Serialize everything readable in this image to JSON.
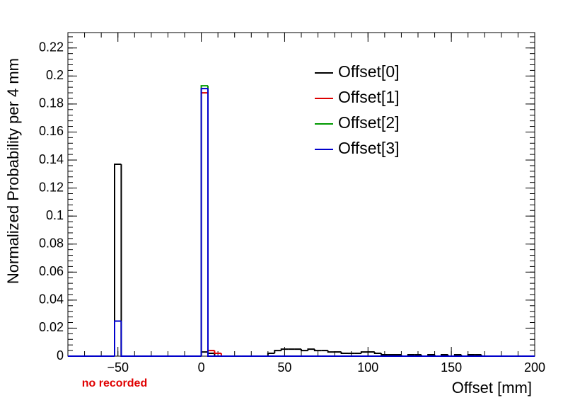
{
  "chart_data": {
    "type": "histogram",
    "xlabel": "Offset [mm]",
    "ylabel": "Normalized Probability per 4 mm",
    "annotation": "no recorded",
    "bins": [
      -80,
      -76,
      -72,
      -68,
      -64,
      -60,
      -56,
      -52,
      -48,
      -44,
      -40,
      -36,
      -32,
      -28,
      -24,
      -20,
      -16,
      -12,
      -8,
      -4,
      0,
      4,
      8,
      12,
      16,
      20,
      24,
      28,
      32,
      36,
      40,
      44,
      48,
      52,
      56,
      60,
      64,
      68,
      72,
      76,
      80,
      84,
      88,
      92,
      96,
      100,
      104,
      108,
      112,
      116,
      120,
      124,
      128,
      132,
      136,
      140,
      144,
      148,
      152,
      156,
      160,
      164,
      168,
      172,
      176,
      180,
      184,
      188,
      192,
      196,
      200
    ],
    "series": [
      {
        "name": "Offset[0]",
        "color": "#000000",
        "values": [
          0,
          0,
          0,
          0,
          0,
          0,
          0,
          0.137,
          0,
          0,
          0,
          0,
          0,
          0,
          0,
          0,
          0,
          0,
          0,
          0,
          0.003,
          0.002,
          0,
          0,
          0,
          0,
          0,
          0,
          0,
          0,
          0.002,
          0.004,
          0.005,
          0.005,
          0.005,
          0.004,
          0.005,
          0.004,
          0.004,
          0.003,
          0.003,
          0.002,
          0.002,
          0.002,
          0.003,
          0.003,
          0.002,
          0.001,
          0.001,
          0.001,
          0,
          0.001,
          0.001,
          0,
          0.001,
          0,
          0.001,
          0,
          0.001,
          0,
          0.001,
          0.001,
          0,
          0,
          0,
          0,
          0,
          0,
          0,
          0
        ]
      },
      {
        "name": "Offset[1]",
        "color": "#dd0000",
        "values": [
          0,
          0,
          0,
          0,
          0,
          0,
          0,
          0.025,
          0,
          0,
          0,
          0,
          0,
          0,
          0,
          0,
          0,
          0,
          0,
          0,
          0.188,
          0.004,
          0.002,
          0,
          0,
          0,
          0,
          0,
          0,
          0,
          0,
          0,
          0,
          0,
          0,
          0,
          0,
          0,
          0,
          0,
          0,
          0,
          0,
          0,
          0,
          0,
          0,
          0,
          0,
          0,
          0,
          0,
          0,
          0,
          0,
          0,
          0,
          0,
          0,
          0,
          0,
          0,
          0,
          0,
          0,
          0,
          0,
          0,
          0,
          0
        ]
      },
      {
        "name": "Offset[2]",
        "color": "#009900",
        "values": [
          0,
          0,
          0,
          0,
          0,
          0,
          0,
          0.025,
          0,
          0,
          0,
          0,
          0,
          0,
          0,
          0,
          0,
          0,
          0,
          0,
          0.193,
          0,
          0,
          0,
          0,
          0,
          0,
          0,
          0,
          0,
          0,
          0,
          0,
          0,
          0,
          0,
          0,
          0,
          0,
          0,
          0,
          0,
          0,
          0,
          0,
          0,
          0,
          0,
          0,
          0,
          0,
          0,
          0,
          0,
          0,
          0,
          0,
          0,
          0,
          0,
          0,
          0,
          0,
          0,
          0,
          0,
          0,
          0,
          0,
          0
        ]
      },
      {
        "name": "Offset[3]",
        "color": "#0000cc",
        "values": [
          0,
          0,
          0,
          0,
          0,
          0,
          0,
          0.025,
          0,
          0,
          0,
          0,
          0,
          0,
          0,
          0,
          0,
          0,
          0,
          0,
          0.191,
          0,
          0,
          0,
          0,
          0,
          0,
          0,
          0,
          0,
          0,
          0,
          0,
          0,
          0,
          0,
          0,
          0,
          0,
          0,
          0,
          0,
          0,
          0,
          0,
          0,
          0,
          0,
          0,
          0,
          0,
          0,
          0,
          0,
          0,
          0,
          0,
          0,
          0,
          0,
          0,
          0,
          0,
          0,
          0,
          0,
          0,
          0,
          0,
          0
        ]
      }
    ],
    "xlim": [
      -80,
      200
    ],
    "ylim": [
      0,
      0.231
    ],
    "xticks": [
      {
        "value": -50,
        "label": "−50"
      },
      0,
      50,
      100,
      150,
      200
    ],
    "yticks": [
      0,
      0.02,
      0.04,
      0.06,
      0.08,
      0.1,
      0.12,
      0.14,
      0.16,
      0.18,
      0.2,
      0.22
    ],
    "grid": false
  }
}
